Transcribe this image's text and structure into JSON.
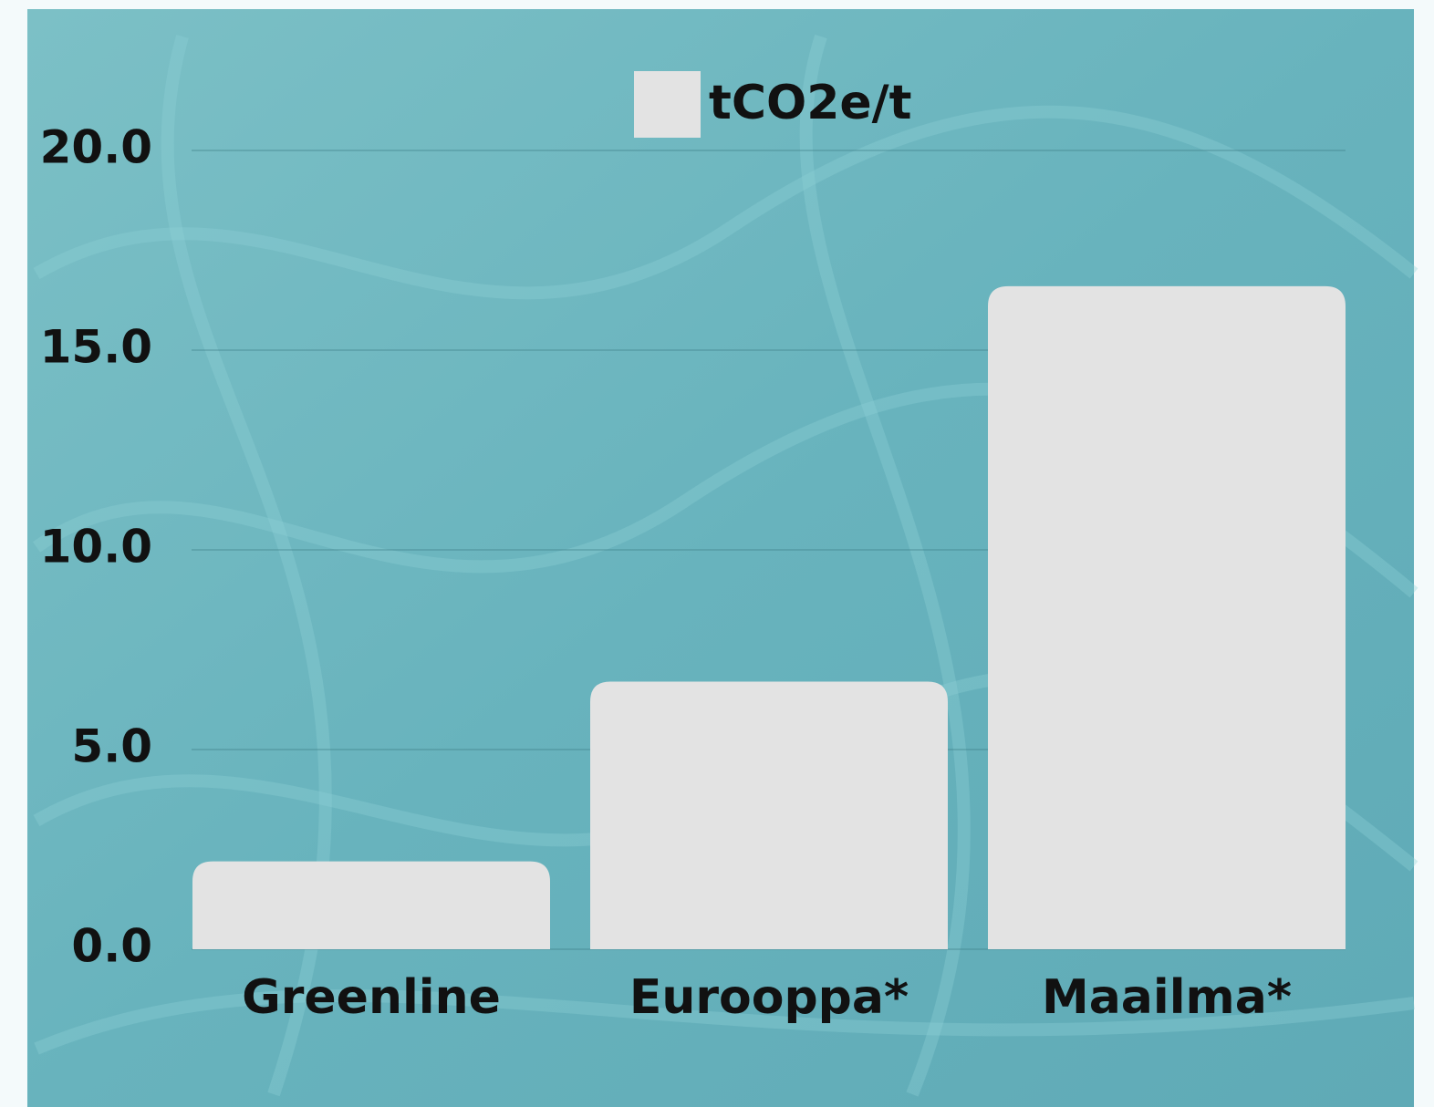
{
  "chart_data": {
    "type": "bar",
    "categories": [
      "Greenline",
      "Eurooppa*",
      "Maailma*"
    ],
    "series": [
      {
        "name": "tCO2e/t",
        "color": "#e3e3e3",
        "values": [
          2.2,
          6.7,
          16.6
        ]
      }
    ],
    "ylim": [
      0,
      20
    ],
    "yticks": [
      {
        "value": 0,
        "label": "0.0"
      },
      {
        "value": 5,
        "label": "5.0"
      },
      {
        "value": 10,
        "label": "10.0"
      },
      {
        "value": 15,
        "label": "15.0"
      },
      {
        "value": 20,
        "label": "20.0"
      }
    ],
    "grid": true,
    "legend": "top"
  }
}
